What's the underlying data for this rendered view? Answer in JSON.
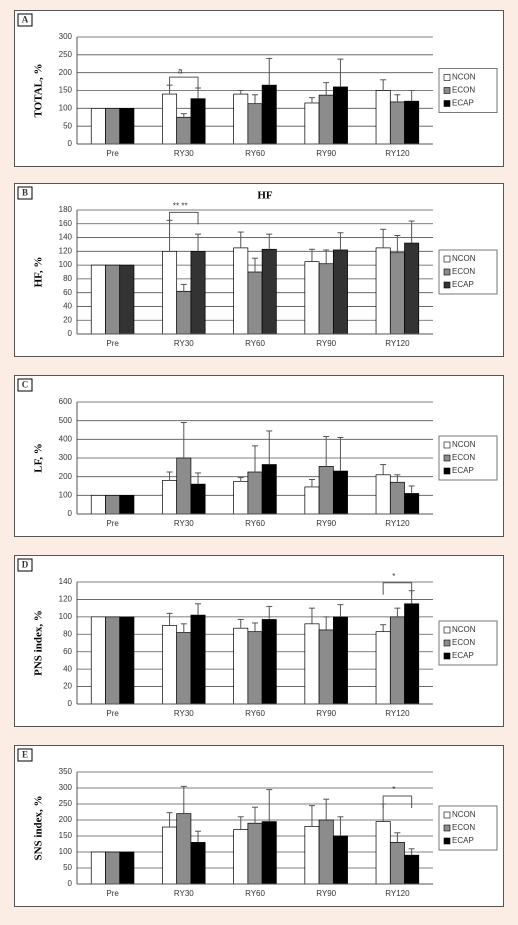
{
  "chart_data": [
    {
      "type": "bar",
      "label": "A",
      "ylabel": "TOTAL, %",
      "annotation": "a",
      "categories": [
        "Pre",
        "RY30",
        "RY60",
        "RY90",
        "RY120"
      ],
      "series": [
        {
          "name": "NCON",
          "color": "#ffffff",
          "values": [
            100,
            140,
            140,
            115,
            150
          ],
          "errors": [
            null,
            25,
            10,
            15,
            30
          ]
        },
        {
          "name": "ECON",
          "color": "#8c8c8c",
          "values": [
            100,
            75,
            113,
            137,
            118
          ],
          "errors": [
            null,
            10,
            25,
            35,
            20
          ]
        },
        {
          "name": "ECAP",
          "color": "#000000",
          "values": [
            100,
            127,
            165,
            160,
            120
          ],
          "errors": [
            null,
            30,
            75,
            78,
            30
          ]
        }
      ],
      "ylim": [
        0,
        300
      ],
      "yticks": [
        0,
        50,
        100,
        150,
        200,
        250,
        300
      ],
      "grid": true
    },
    {
      "type": "bar",
      "label": "B",
      "title": "HF",
      "ylabel": "HF, %",
      "annotation": "** **",
      "categories": [
        "Pre",
        "RY30",
        "RY60",
        "RY90",
        "RY120"
      ],
      "series": [
        {
          "name": "NCON",
          "color": "#ffffff",
          "values": [
            100,
            120,
            125,
            105,
            125
          ],
          "errors": [
            null,
            45,
            23,
            18,
            27
          ]
        },
        {
          "name": "ECON",
          "color": "#8c8c8c",
          "values": [
            100,
            62,
            90,
            102,
            118
          ],
          "errors": [
            null,
            10,
            20,
            20,
            25
          ]
        },
        {
          "name": "ECAP",
          "color": "#333333",
          "values": [
            100,
            120,
            123,
            122,
            132
          ],
          "errors": [
            null,
            25,
            22,
            25,
            32
          ]
        }
      ],
      "ylim": [
        0,
        180
      ],
      "yticks": [
        0,
        20,
        40,
        60,
        80,
        100,
        120,
        140,
        160,
        180
      ],
      "grid": true
    },
    {
      "type": "bar",
      "label": "C",
      "ylabel": "LF, %",
      "categories": [
        "Pre",
        "RY30",
        "RY60",
        "RY90",
        "RY120"
      ],
      "series": [
        {
          "name": "NCON",
          "color": "#ffffff",
          "values": [
            100,
            180,
            175,
            145,
            210
          ],
          "errors": [
            null,
            45,
            20,
            40,
            55
          ]
        },
        {
          "name": "ECON",
          "color": "#8c8c8c",
          "values": [
            100,
            300,
            225,
            255,
            170
          ],
          "errors": [
            null,
            190,
            140,
            160,
            40
          ]
        },
        {
          "name": "ECAP",
          "color": "#000000",
          "values": [
            100,
            160,
            265,
            230,
            110
          ],
          "errors": [
            null,
            60,
            180,
            180,
            40
          ]
        }
      ],
      "ylim": [
        0,
        600
      ],
      "yticks": [
        0,
        100,
        200,
        300,
        400,
        500,
        600
      ],
      "grid": true
    },
    {
      "type": "bar",
      "label": "D",
      "ylabel": "PNS index, %",
      "annotation": "*",
      "categories": [
        "Pre",
        "RY30",
        "RY60",
        "RY90",
        "RY120"
      ],
      "series": [
        {
          "name": "NCON",
          "color": "#ffffff",
          "values": [
            100,
            90,
            87,
            92,
            83
          ],
          "errors": [
            null,
            14,
            10,
            18,
            8
          ]
        },
        {
          "name": "ECON",
          "color": "#8c8c8c",
          "values": [
            100,
            82,
            83,
            85,
            100
          ],
          "errors": [
            null,
            10,
            10,
            15,
            10
          ]
        },
        {
          "name": "ECAP",
          "color": "#000000",
          "values": [
            100,
            102,
            97,
            100,
            115
          ],
          "errors": [
            null,
            13,
            15,
            14,
            15
          ]
        }
      ],
      "ylim": [
        0,
        140
      ],
      "yticks": [
        0,
        20,
        40,
        60,
        80,
        100,
        120,
        140
      ],
      "grid": true
    },
    {
      "type": "bar",
      "label": "E",
      "ylabel": "SNS index, %",
      "annotation": "*",
      "categories": [
        "Pre",
        "RY30",
        "RY60",
        "RY90",
        "RY120"
      ],
      "series": [
        {
          "name": "NCON",
          "color": "#ffffff",
          "values": [
            100,
            178,
            170,
            180,
            195
          ],
          "errors": [
            null,
            45,
            40,
            65,
            55
          ]
        },
        {
          "name": "ECON",
          "color": "#8c8c8c",
          "values": [
            100,
            220,
            190,
            200,
            130
          ],
          "errors": [
            null,
            85,
            50,
            65,
            30
          ]
        },
        {
          "name": "ECAP",
          "color": "#000000",
          "values": [
            100,
            130,
            195,
            150,
            90
          ],
          "errors": [
            null,
            35,
            100,
            60,
            20
          ]
        }
      ],
      "ylim": [
        0,
        350
      ],
      "yticks": [
        0,
        50,
        100,
        150,
        200,
        250,
        300,
        350
      ],
      "grid": true
    }
  ]
}
